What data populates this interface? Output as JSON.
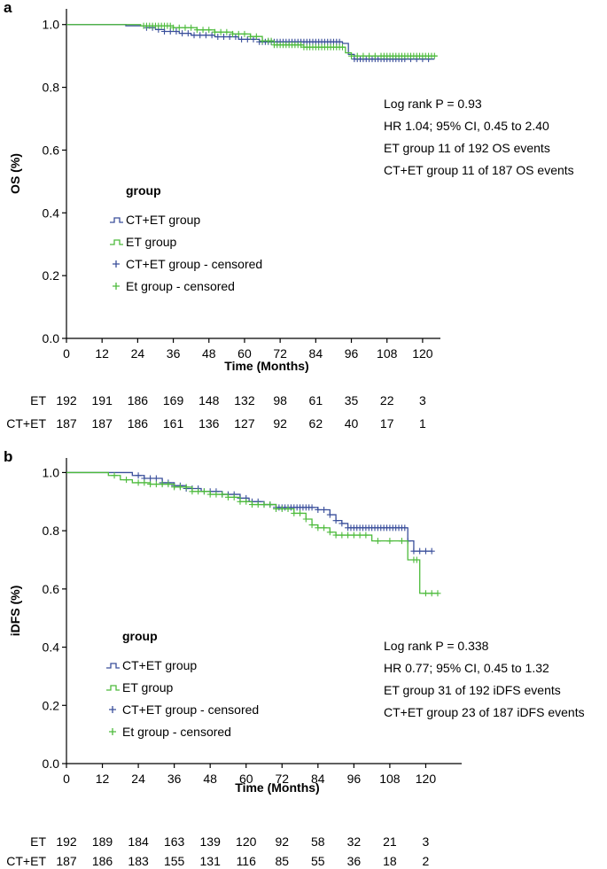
{
  "colors": {
    "ct_et": "#3a4f9b",
    "et": "#4dbb3c",
    "axis": "#000000"
  },
  "chart_data": [
    {
      "panel_label": "a",
      "type": "line",
      "subtype": "kaplan-meier",
      "ylabel": "OS (%)",
      "xlabel": "Time (Months)",
      "xlim": [
        0,
        126
      ],
      "ylim": [
        0.0,
        1.05
      ],
      "xticks": [
        "0",
        "12",
        "24",
        "36",
        "48",
        "60",
        "72",
        "84",
        "96",
        "108",
        "120"
      ],
      "yticks": [
        "0.0",
        "0.2",
        "0.4",
        "0.6",
        "0.8",
        "1.0"
      ],
      "legend_title": "group",
      "legend": [
        "CT+ET group",
        "ET group",
        "CT+ET group - censored",
        "Et group - censored"
      ],
      "annotations": [
        "Log rank P = 0.93",
        "HR 1.04; 95% CI, 0.45 to 2.40",
        "ET group 11 of 192 OS events",
        "CT+ET group 11 of 187 OS events"
      ],
      "series": [
        {
          "name": "CT+ET group",
          "color_key": "ct_et",
          "steps": [
            [
              0,
              1.0
            ],
            [
              20,
              0.996
            ],
            [
              27,
              0.99
            ],
            [
              30,
              0.984
            ],
            [
              33,
              0.978
            ],
            [
              38,
              0.972
            ],
            [
              42,
              0.966
            ],
            [
              50,
              0.961
            ],
            [
              58,
              0.953
            ],
            [
              65,
              0.945
            ],
            [
              93,
              0.94
            ],
            [
              95,
              0.905
            ],
            [
              97,
              0.89
            ],
            [
              124,
              0.89
            ]
          ],
          "censored": [
            27,
            29,
            31,
            33,
            35,
            37,
            39,
            41,
            43,
            45,
            47,
            49,
            51,
            53,
            55,
            57,
            59,
            61,
            63,
            65,
            66,
            67,
            68,
            69,
            70,
            71,
            72,
            73,
            74,
            75,
            76,
            77,
            78,
            79,
            80,
            81,
            82,
            83,
            84,
            85,
            86,
            87,
            88,
            89,
            90,
            91,
            92,
            97,
            98,
            99,
            100,
            101,
            102,
            103,
            104,
            105,
            106,
            107,
            108,
            109,
            110,
            111,
            112,
            113,
            114,
            116,
            118,
            120,
            122
          ]
        },
        {
          "name": "ET group",
          "color_key": "et",
          "steps": [
            [
              0,
              1.0
            ],
            [
              25,
              0.996
            ],
            [
              36,
              0.99
            ],
            [
              44,
              0.983
            ],
            [
              50,
              0.976
            ],
            [
              56,
              0.97
            ],
            [
              62,
              0.962
            ],
            [
              66,
              0.948
            ],
            [
              70,
              0.935
            ],
            [
              80,
              0.928
            ],
            [
              94,
              0.91
            ],
            [
              96,
              0.9
            ],
            [
              125,
              0.9
            ]
          ],
          "censored": [
            26,
            27,
            28,
            29,
            30,
            31,
            32,
            33,
            34,
            35,
            36,
            38,
            40,
            42,
            44,
            46,
            48,
            50,
            52,
            54,
            56,
            58,
            60,
            62,
            64,
            66,
            68,
            69,
            70,
            71,
            72,
            73,
            74,
            75,
            76,
            77,
            78,
            79,
            80,
            81,
            82,
            83,
            84,
            85,
            86,
            87,
            88,
            89,
            90,
            91,
            92,
            93,
            96,
            98,
            100,
            102,
            104,
            106,
            107,
            108,
            109,
            110,
            111,
            112,
            113,
            114,
            115,
            116,
            117,
            118,
            119,
            120,
            121,
            122,
            123,
            124
          ]
        }
      ],
      "risk_table": {
        "rows": [
          {
            "label": "ET",
            "values": [
              "192",
              "191",
              "186",
              "169",
              "148",
              "132",
              "98",
              "61",
              "35",
              "22",
              "3"
            ]
          },
          {
            "label": "CT+ET",
            "values": [
              "187",
              "187",
              "186",
              "161",
              "136",
              "127",
              "92",
              "62",
              "40",
              "17",
              "1"
            ]
          }
        ]
      }
    },
    {
      "panel_label": "b",
      "type": "line",
      "subtype": "kaplan-meier",
      "ylabel": "iDFS (%)",
      "xlabel": "Time (Months)",
      "xlim": [
        0,
        132
      ],
      "ylim": [
        0.0,
        1.05
      ],
      "xticks": [
        "0",
        "12",
        "24",
        "36",
        "48",
        "60",
        "72",
        "84",
        "96",
        "108",
        "120"
      ],
      "yticks": [
        "0.0",
        "0.2",
        "0.4",
        "0.6",
        "0.8",
        "1.0"
      ],
      "legend_title": "group",
      "legend": [
        "CT+ET group",
        "ET group",
        "CT+ET group - censored",
        "Et group - censored"
      ],
      "annotations": [
        "Log rank P = 0.338",
        "HR 0.77; 95% CI, 0.45 to 1.32",
        "ET group 31 of 192 iDFS events",
        "CT+ET group 23 of 187 iDFS events"
      ],
      "series": [
        {
          "name": "CT+ET group",
          "color_key": "ct_et",
          "steps": [
            [
              0,
              1.0
            ],
            [
              22,
              0.99
            ],
            [
              26,
              0.98
            ],
            [
              32,
              0.965
            ],
            [
              36,
              0.955
            ],
            [
              40,
              0.945
            ],
            [
              45,
              0.935
            ],
            [
              52,
              0.925
            ],
            [
              58,
              0.912
            ],
            [
              61,
              0.9
            ],
            [
              66,
              0.89
            ],
            [
              70,
              0.88
            ],
            [
              84,
              0.872
            ],
            [
              88,
              0.855
            ],
            [
              90,
              0.835
            ],
            [
              92,
              0.825
            ],
            [
              94,
              0.81
            ],
            [
              114,
              0.765
            ],
            [
              116,
              0.73
            ],
            [
              122,
              0.73
            ]
          ],
          "censored": [
            24,
            26,
            28,
            30,
            32,
            34,
            36,
            38,
            40,
            42,
            44,
            46,
            48,
            50,
            52,
            54,
            56,
            58,
            60,
            62,
            64,
            66,
            68,
            70,
            71,
            72,
            73,
            74,
            75,
            76,
            77,
            78,
            79,
            80,
            81,
            82,
            84,
            86,
            88,
            90,
            92,
            94,
            95,
            96,
            97,
            98,
            99,
            100,
            101,
            102,
            103,
            104,
            105,
            106,
            107,
            108,
            109,
            110,
            111,
            112,
            113,
            114,
            116,
            118,
            120,
            122
          ]
        },
        {
          "name": "ET group",
          "color_key": "et",
          "steps": [
            [
              0,
              1.0
            ],
            [
              14,
              0.99
            ],
            [
              18,
              0.975
            ],
            [
              22,
              0.965
            ],
            [
              28,
              0.96
            ],
            [
              36,
              0.95
            ],
            [
              42,
              0.935
            ],
            [
              48,
              0.925
            ],
            [
              54,
              0.915
            ],
            [
              58,
              0.9
            ],
            [
              62,
              0.89
            ],
            [
              70,
              0.875
            ],
            [
              76,
              0.86
            ],
            [
              80,
              0.84
            ],
            [
              82,
              0.82
            ],
            [
              84,
              0.81
            ],
            [
              88,
              0.795
            ],
            [
              90,
              0.785
            ],
            [
              102,
              0.765
            ],
            [
              114,
              0.7
            ],
            [
              118,
              0.585
            ],
            [
              124,
              0.585
            ]
          ],
          "censored": [
            16,
            20,
            24,
            26,
            28,
            30,
            32,
            34,
            36,
            38,
            40,
            42,
            44,
            46,
            48,
            50,
            52,
            54,
            56,
            58,
            60,
            62,
            64,
            66,
            68,
            70,
            72,
            74,
            76,
            78,
            80,
            82,
            84,
            86,
            88,
            90,
            92,
            94,
            96,
            98,
            100,
            104,
            108,
            112,
            116,
            117,
            120,
            122,
            124
          ]
        }
      ],
      "risk_table": {
        "rows": [
          {
            "label": "ET",
            "values": [
              "192",
              "189",
              "184",
              "163",
              "139",
              "120",
              "92",
              "58",
              "32",
              "21",
              "3"
            ]
          },
          {
            "label": "CT+ET",
            "values": [
              "187",
              "186",
              "183",
              "155",
              "131",
              "116",
              "85",
              "55",
              "36",
              "18",
              "2"
            ]
          }
        ]
      }
    }
  ]
}
